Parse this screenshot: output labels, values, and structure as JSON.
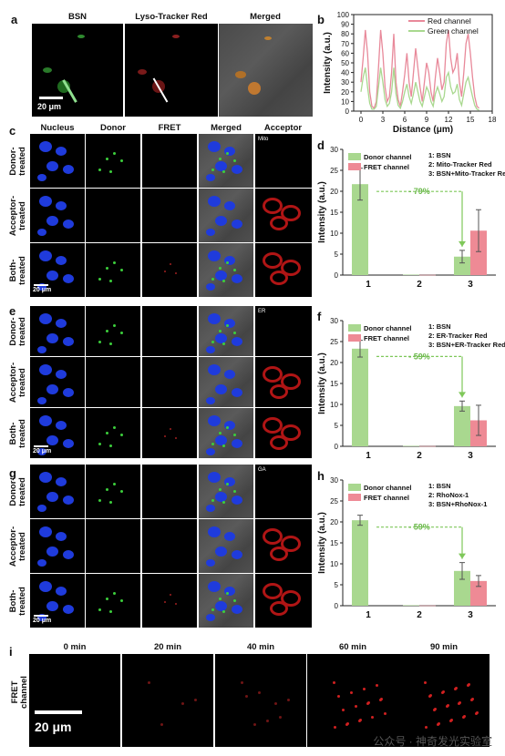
{
  "panel_a": {
    "letter": "a",
    "titles": [
      "BSN",
      "Lyso-Tracker Red",
      "Merged"
    ],
    "scalebar": "20 μm"
  },
  "panel_b": {
    "letter": "b",
    "chart_data": {
      "type": "line",
      "xlabel": "Distance (μm)",
      "ylabel": "Intensity (a.u.)",
      "xlim": [
        -1,
        18
      ],
      "ylim": [
        0,
        100
      ],
      "xticks": [
        0,
        3,
        6,
        9,
        12,
        15,
        18
      ],
      "yticks": [
        0,
        10,
        20,
        30,
        40,
        50,
        60,
        70,
        80,
        90,
        100
      ],
      "series": [
        {
          "name": "Red channel",
          "color": "#e8899a",
          "x": [
            0,
            0.3,
            0.6,
            0.9,
            1.2,
            1.5,
            1.8,
            2.1,
            2.4,
            2.7,
            3.0,
            3.3,
            3.6,
            3.9,
            4.2,
            4.5,
            4.8,
            5.1,
            5.4,
            5.7,
            6.0,
            6.3,
            6.6,
            6.9,
            7.2,
            7.5,
            7.8,
            8.1,
            8.4,
            8.7,
            9.0,
            9.3,
            9.6,
            9.9,
            10.2,
            10.5,
            10.8,
            11.1,
            11.4,
            11.7,
            12.0,
            12.3,
            12.6,
            12.9,
            13.2,
            13.5,
            13.8,
            14.1,
            14.4,
            14.7,
            15.0,
            15.3,
            15.6,
            15.9,
            16.2
          ],
          "y": [
            30,
            55,
            84,
            60,
            20,
            5,
            3,
            10,
            45,
            84,
            60,
            25,
            10,
            15,
            40,
            80,
            30,
            12,
            5,
            20,
            38,
            60,
            30,
            15,
            40,
            65,
            45,
            25,
            10,
            30,
            50,
            40,
            20,
            10,
            35,
            55,
            40,
            22,
            30,
            70,
            84,
            55,
            40,
            45,
            60,
            30,
            15,
            40,
            70,
            80,
            60,
            35,
            15,
            5,
            3
          ]
        },
        {
          "name": "Green channel",
          "color": "#a9d88f",
          "x": [
            0,
            0.3,
            0.6,
            0.9,
            1.2,
            1.5,
            1.8,
            2.1,
            2.4,
            2.7,
            3.0,
            3.3,
            3.6,
            3.9,
            4.2,
            4.5,
            4.8,
            5.1,
            5.4,
            5.7,
            6.0,
            6.3,
            6.6,
            6.9,
            7.2,
            7.5,
            7.8,
            8.1,
            8.4,
            8.7,
            9.0,
            9.3,
            9.6,
            9.9,
            10.2,
            10.5,
            10.8,
            11.1,
            11.4,
            11.7,
            12.0,
            12.3,
            12.6,
            12.9,
            13.2,
            13.5,
            13.8,
            14.1,
            14.4,
            14.7,
            15.0,
            15.3,
            15.6,
            15.9,
            16.2
          ],
          "y": [
            20,
            35,
            45,
            25,
            8,
            2,
            2,
            5,
            25,
            45,
            30,
            12,
            5,
            8,
            20,
            45,
            18,
            6,
            3,
            10,
            20,
            28,
            15,
            8,
            18,
            30,
            20,
            10,
            5,
            15,
            25,
            20,
            10,
            5,
            18,
            25,
            18,
            10,
            15,
            35,
            40,
            25,
            18,
            20,
            28,
            12,
            6,
            18,
            30,
            35,
            25,
            15,
            6,
            2,
            1
          ]
        }
      ]
    }
  },
  "grid_headers": [
    "Nucleus",
    "Donor",
    "FRET",
    "Merged",
    "Acceptor"
  ],
  "row_labels": {
    "donor": "Donor-\ntreated",
    "acceptor": "Acceptor-\ntreated",
    "both": "Both-\ntreated"
  },
  "panel_c": {
    "letter": "c",
    "tag": "Mito",
    "scalebar": "20 μm"
  },
  "panel_e": {
    "letter": "e",
    "tag": "ER",
    "scalebar": "20 μm"
  },
  "panel_g": {
    "letter": "g",
    "tag": "GA",
    "scalebar": "20 μm"
  },
  "panel_d": {
    "letter": "d",
    "chart_data": {
      "type": "bar",
      "ylabel": "Intensity (a.u.)",
      "categories": [
        "1",
        "2",
        "3"
      ],
      "ylim": [
        0,
        30
      ],
      "yticks": [
        0,
        5,
        10,
        15,
        20,
        25,
        30
      ],
      "series": [
        {
          "name": "Donor channel",
          "color": "#a9d88f",
          "values": [
            21.7,
            0.1,
            4.4
          ],
          "errors": [
            3.8,
            0,
            1.5
          ]
        },
        {
          "name": "FRET channel",
          "color": "#ee8a95",
          "values": [
            null,
            0.05,
            10.6
          ],
          "errors": [
            0,
            0,
            5.0
          ]
        }
      ],
      "legend_items": [
        "1: BSN",
        "2: Mito-Tracker Red",
        "3: BSN+Mito-Tracker Re"
      ],
      "annotation": "- 79%"
    }
  },
  "panel_f": {
    "letter": "f",
    "chart_data": {
      "type": "bar",
      "ylabel": "Intensity (a.u.)",
      "categories": [
        "1",
        "2",
        "3"
      ],
      "ylim": [
        0,
        30
      ],
      "yticks": [
        0,
        5,
        10,
        15,
        20,
        25,
        30
      ],
      "series": [
        {
          "name": "Donor channel",
          "color": "#a9d88f",
          "values": [
            23.3,
            0.1,
            9.6
          ],
          "errors": [
            2.0,
            0,
            1.2
          ]
        },
        {
          "name": "FRET channel",
          "color": "#ee8a95",
          "values": [
            null,
            0.05,
            6.2
          ],
          "errors": [
            0,
            0,
            3.6
          ]
        }
      ],
      "legend_items": [
        "1: BSN",
        "2: ER-Tracker Red",
        "3: BSN+ER-Tracker Red"
      ],
      "annotation": "- 59%"
    }
  },
  "panel_h": {
    "letter": "h",
    "chart_data": {
      "type": "bar",
      "ylabel": "Intensity (a.u.)",
      "categories": [
        "1",
        "2",
        "3"
      ],
      "ylim": [
        0,
        30
      ],
      "yticks": [
        0,
        5,
        10,
        15,
        20,
        25,
        30
      ],
      "series": [
        {
          "name": "Donor channel",
          "color": "#a9d88f",
          "values": [
            20.4,
            0.1,
            8.3
          ],
          "errors": [
            1.2,
            0,
            2.0
          ]
        },
        {
          "name": "FRET channel",
          "color": "#ee8a95",
          "values": [
            null,
            0.05,
            5.9
          ],
          "errors": [
            0,
            0,
            1.3
          ]
        }
      ],
      "legend_items": [
        "1: BSN",
        "2: RhoNox-1",
        "3: BSN+RhoNox-1"
      ],
      "annotation": "- 59%"
    }
  },
  "panel_i": {
    "letter": "i",
    "times": [
      "0 min",
      "20 min",
      "40 min",
      "60 min",
      "90 min"
    ],
    "row_label": "FRET\nchannel",
    "scalebar": "20 μm"
  },
  "watermark": "公众号 · 神奇发光实验室"
}
